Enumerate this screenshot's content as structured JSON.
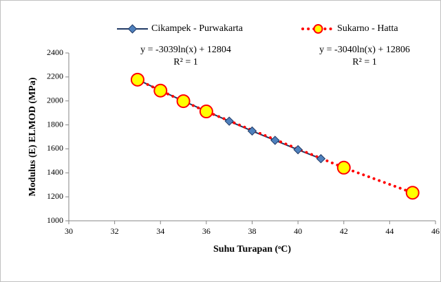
{
  "chart_data": {
    "type": "line",
    "xlabel": "Suhu Turapan (ᵒC)",
    "ylabel": "Modulus (E) ELMOD (MPa)",
    "xlim": [
      30,
      46
    ],
    "xticks": [
      30,
      32,
      34,
      36,
      38,
      40,
      42,
      44,
      46
    ],
    "ylim": [
      1000,
      2400
    ],
    "yticks": [
      1000,
      1200,
      1400,
      1600,
      1800,
      2000,
      2200,
      2400
    ],
    "grid": false,
    "legend": "top",
    "series": [
      {
        "name": "Cikampek - Purwakarta",
        "color": "#1f3864",
        "marker": "diamond",
        "marker_fill": "#4f81bd",
        "linestyle": "solid",
        "x": [
          33,
          34,
          35,
          36,
          37,
          38,
          39,
          40,
          41
        ],
        "values": [
          2178,
          2087,
          1999,
          1914,
          1831,
          1749,
          1671,
          1593,
          1518
        ],
        "equation": "y = -3039ln(x) + 12804",
        "r2": "R² = 1"
      },
      {
        "name": "Sukarno - Hatta",
        "color": "#ff0000",
        "marker": "circle",
        "marker_fill": "#ffff00",
        "linestyle": "dotted",
        "x": [
          33,
          34,
          35,
          36,
          42,
          45
        ],
        "values": [
          2177,
          2086,
          1998,
          1912,
          1443,
          1234
        ],
        "equation": "y = -3040ln(x) + 12806",
        "r2": "R² = 1"
      }
    ]
  }
}
